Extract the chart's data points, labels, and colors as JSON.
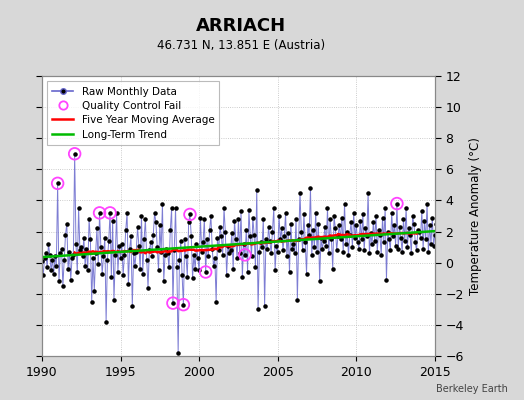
{
  "title": "ARRIACH",
  "subtitle": "46.731 N, 13.851 E (Austria)",
  "ylabel": "Temperature Anomaly (°C)",
  "watermark": "Berkeley Earth",
  "xlim": [
    1990,
    2015
  ],
  "ylim": [
    -6,
    12
  ],
  "yticks": [
    -6,
    -4,
    -2,
    0,
    2,
    4,
    6,
    8,
    10,
    12
  ],
  "xticks": [
    1990,
    1995,
    2000,
    2005,
    2010,
    2015
  ],
  "bg_color": "#d8d8d8",
  "plot_bg_color": "#ffffff",
  "raw_color": "#6666cc",
  "dot_color": "#000000",
  "qc_color": "#ff44ff",
  "ma_color": "#ff0000",
  "trend_color": "#00bb00",
  "raw_monthly": [
    0.1,
    -0.8,
    0.3,
    0.6,
    -0.3,
    1.2,
    0.5,
    -0.5,
    0.2,
    -0.7,
    0.4,
    -0.2,
    5.1,
    -1.2,
    0.6,
    0.9,
    -1.5,
    0.2,
    1.8,
    2.5,
    -0.4,
    0.7,
    -1.1,
    0.3,
    0.5,
    7.0,
    1.2,
    -0.6,
    3.5,
    0.8,
    1.0,
    0.4,
    1.6,
    -0.2,
    0.9,
    -0.5,
    2.8,
    1.5,
    -2.5,
    0.3,
    -1.8,
    0.6,
    2.2,
    -0.1,
    3.2,
    1.0,
    -0.7,
    0.4,
    1.6,
    -3.8,
    0.2,
    1.4,
    3.2,
    -0.9,
    2.7,
    -2.4,
    0.5,
    3.2,
    -0.6,
    1.1,
    0.3,
    1.2,
    -0.8,
    0.5,
    2.1,
    3.2,
    -1.4,
    0.9,
    1.7,
    -2.8,
    0.6,
    -0.2,
    0.7,
    2.3,
    1.1,
    -0.4,
    3.0,
    -0.7,
    1.5,
    2.8,
    0.2,
    -1.6,
    0.8,
    1.3,
    0.4,
    1.8,
    3.2,
    2.6,
    1.0,
    -0.5,
    2.4,
    0.7,
    3.8,
    -1.2,
    0.5,
    0.9,
    0.6,
    -0.3,
    2.1,
    3.5,
    -2.6,
    0.8,
    3.5,
    -0.3,
    -5.8,
    0.2,
    1.4,
    -0.8,
    -2.7,
    1.5,
    0.4,
    -0.9,
    2.6,
    3.1,
    1.7,
    -1.0,
    0.5,
    -0.4,
    1.2,
    0.3,
    -0.5,
    2.9,
    0.7,
    1.3,
    2.8,
    -0.6,
    1.5,
    0.4,
    2.1,
    3.0,
    0.9,
    -0.2,
    0.3,
    -2.5,
    1.6,
    0.8,
    2.3,
    1.7,
    0.5,
    3.5,
    2.0,
    -0.8,
    1.1,
    0.6,
    0.8,
    1.9,
    -0.4,
    2.7,
    1.5,
    0.3,
    2.8,
    0.6,
    3.3,
    -0.9,
    1.2,
    0.5,
    2.1,
    -0.6,
    3.4,
    1.7,
    0.4,
    2.9,
    1.8,
    -0.3,
    4.7,
    -3.0,
    0.7,
    1.3,
    1.0,
    2.8,
    -2.8,
    1.5,
    0.9,
    2.3,
    1.4,
    0.6,
    2.0,
    3.5,
    -0.5,
    1.1,
    0.7,
    3.0,
    1.5,
    2.2,
    0.8,
    1.7,
    3.2,
    0.4,
    1.9,
    -0.6,
    2.5,
    0.9,
    1.2,
    0.6,
    2.8,
    -2.4,
    1.5,
    4.5,
    2.0,
    0.8,
    3.1,
    1.3,
    -0.7,
    2.4,
    1.8,
    4.8,
    0.5,
    2.1,
    1.0,
    3.2,
    0.7,
    2.5,
    -1.2,
    1.6,
    0.9,
    1.4,
    2.3,
    1.1,
    3.5,
    0.6,
    2.8,
    1.5,
    -0.4,
    3.0,
    2.2,
    0.8,
    1.7,
    2.4,
    1.5,
    2.9,
    0.7,
    3.8,
    1.2,
    2.0,
    0.5,
    1.8,
    2.6,
    1.0,
    3.2,
    1.6,
    2.4,
    1.3,
    0.9,
    2.7,
    1.5,
    3.1,
    0.8,
    2.2,
    1.7,
    4.5,
    0.6,
    1.9,
    1.2,
    2.6,
    1.4,
    3.0,
    0.7,
    2.1,
    1.8,
    0.5,
    2.9,
    1.3,
    3.5,
    -1.1,
    2.0,
    1.5,
    0.8,
    3.2,
    1.7,
    2.4,
    1.1,
    3.8,
    0.9,
    2.3,
    1.6,
    0.7,
    2.8,
    1.4,
    3.5,
    1.0,
    2.2,
    1.8,
    0.6,
    3.0,
    2.5,
    1.3,
    0.8,
    2.1,
    2.0,
    1.6,
    3.3,
    0.9,
    2.7,
    1.5,
    3.8,
    0.7,
    2.4,
    1.2,
    2.9,
    1.1,
    1.8,
    2.5,
    1.3,
    3.0,
    2.2,
    0.8,
    2.7,
    1.6,
    3.4,
    1.0,
    2.1,
    1.5
  ],
  "qc_fail_indices": [
    12,
    25,
    44,
    52,
    100,
    108,
    113,
    125,
    155,
    271
  ],
  "start_year": 1990,
  "start_month": 1
}
